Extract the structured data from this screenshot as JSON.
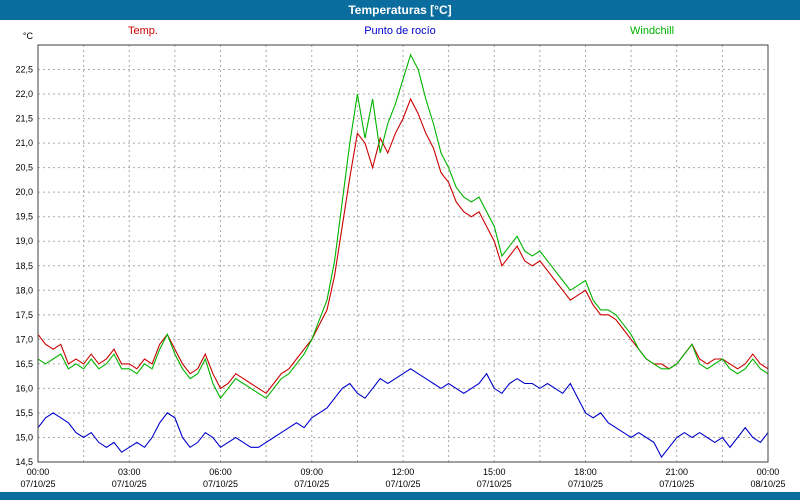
{
  "window": {
    "title": "Temperaturas [°C]"
  },
  "colors": {
    "titlebar": "#0a6d9e",
    "plot_background": "#ffffff",
    "grid": "#aaaaaa",
    "frame": "#404040"
  },
  "legend": [
    {
      "label": "Temp.",
      "color": "#cc0000"
    },
    {
      "label": "Punto de rocío",
      "color": "#0000cc"
    },
    {
      "label": "Windchill",
      "color": "#00b400"
    }
  ],
  "chart_data": {
    "type": "line",
    "title": "Temperaturas [°C]",
    "ylabel": "°C",
    "ylim": [
      14.5,
      23.0
    ],
    "ytick_step": 0.5,
    "grid": true,
    "x_minor_hours": 1.5,
    "total_hours": 24,
    "interval_minutes": 15,
    "x_ticks": [
      {
        "time": "00:00",
        "date": "07/10/25"
      },
      {
        "time": "03:00",
        "date": "07/10/25"
      },
      {
        "time": "06:00",
        "date": "07/10/25"
      },
      {
        "time": "09:00",
        "date": "07/10/25"
      },
      {
        "time": "12:00",
        "date": "07/10/25"
      },
      {
        "time": "15:00",
        "date": "07/10/25"
      },
      {
        "time": "18:00",
        "date": "07/10/25"
      },
      {
        "time": "21:00",
        "date": "07/10/25"
      },
      {
        "time": "00:00",
        "date": "08/10/25"
      }
    ],
    "series": [
      {
        "name": "Temp.",
        "color": "#cc0000",
        "values": [
          17.1,
          16.9,
          16.8,
          16.9,
          16.5,
          16.6,
          16.5,
          16.7,
          16.5,
          16.6,
          16.8,
          16.5,
          16.5,
          16.4,
          16.6,
          16.5,
          16.9,
          17.1,
          16.8,
          16.5,
          16.3,
          16.4,
          16.7,
          16.3,
          16.0,
          16.1,
          16.3,
          16.2,
          16.1,
          16.0,
          15.9,
          16.1,
          16.3,
          16.4,
          16.6,
          16.8,
          17.0,
          17.3,
          17.6,
          18.3,
          19.3,
          20.3,
          21.2,
          21.0,
          20.5,
          21.1,
          20.8,
          21.2,
          21.5,
          21.9,
          21.6,
          21.2,
          20.9,
          20.4,
          20.2,
          19.8,
          19.6,
          19.5,
          19.6,
          19.3,
          19.0,
          18.5,
          18.7,
          18.9,
          18.6,
          18.5,
          18.6,
          18.4,
          18.2,
          18.0,
          17.8,
          17.9,
          18.0,
          17.7,
          17.5,
          17.5,
          17.4,
          17.2,
          17.0,
          16.8,
          16.6,
          16.5,
          16.5,
          16.4,
          16.5,
          16.7,
          16.9,
          16.6,
          16.5,
          16.6,
          16.6,
          16.5,
          16.4,
          16.5,
          16.7,
          16.5,
          16.4
        ]
      },
      {
        "name": "Punto de rocío",
        "color": "#0000cc",
        "values": [
          15.2,
          15.4,
          15.5,
          15.4,
          15.3,
          15.1,
          15.0,
          15.1,
          14.9,
          14.8,
          14.9,
          14.7,
          14.8,
          14.9,
          14.8,
          15.0,
          15.3,
          15.5,
          15.4,
          15.0,
          14.8,
          14.9,
          15.1,
          15.0,
          14.8,
          14.9,
          15.0,
          14.9,
          14.8,
          14.8,
          14.9,
          15.0,
          15.1,
          15.2,
          15.3,
          15.2,
          15.4,
          15.5,
          15.6,
          15.8,
          16.0,
          16.1,
          15.9,
          15.8,
          16.0,
          16.2,
          16.1,
          16.2,
          16.3,
          16.4,
          16.3,
          16.2,
          16.1,
          16.0,
          16.1,
          16.0,
          15.9,
          16.0,
          16.1,
          16.3,
          16.0,
          15.9,
          16.1,
          16.2,
          16.1,
          16.1,
          16.0,
          16.1,
          16.0,
          15.9,
          16.1,
          15.8,
          15.5,
          15.4,
          15.5,
          15.3,
          15.2,
          15.1,
          15.0,
          15.1,
          15.0,
          14.9,
          14.6,
          14.8,
          15.0,
          15.1,
          15.0,
          15.1,
          15.0,
          14.9,
          15.0,
          14.8,
          15.0,
          15.2,
          15.0,
          14.9,
          15.1
        ]
      },
      {
        "name": "Windchill",
        "color": "#00b400",
        "values": [
          16.6,
          16.5,
          16.6,
          16.7,
          16.4,
          16.5,
          16.4,
          16.6,
          16.4,
          16.5,
          16.7,
          16.4,
          16.4,
          16.3,
          16.5,
          16.4,
          16.8,
          17.1,
          16.7,
          16.4,
          16.2,
          16.3,
          16.6,
          16.1,
          15.8,
          16.0,
          16.2,
          16.1,
          16.0,
          15.9,
          15.8,
          16.0,
          16.2,
          16.3,
          16.5,
          16.7,
          17.0,
          17.4,
          17.8,
          18.6,
          19.8,
          21.0,
          22.0,
          21.1,
          21.9,
          20.8,
          21.4,
          21.8,
          22.3,
          22.8,
          22.5,
          21.9,
          21.4,
          20.8,
          20.5,
          20.1,
          19.9,
          19.8,
          19.9,
          19.6,
          19.3,
          18.7,
          18.9,
          19.1,
          18.8,
          18.7,
          18.8,
          18.6,
          18.4,
          18.2,
          18.0,
          18.1,
          18.2,
          17.8,
          17.6,
          17.6,
          17.5,
          17.3,
          17.1,
          16.8,
          16.6,
          16.5,
          16.4,
          16.4,
          16.5,
          16.7,
          16.9,
          16.5,
          16.4,
          16.5,
          16.6,
          16.4,
          16.3,
          16.4,
          16.6,
          16.4,
          16.3
        ]
      }
    ]
  }
}
